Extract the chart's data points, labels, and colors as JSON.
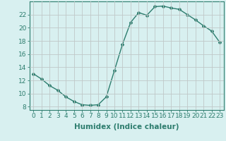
{
  "x": [
    0,
    1,
    2,
    3,
    4,
    5,
    6,
    7,
    8,
    9,
    10,
    11,
    12,
    13,
    14,
    15,
    16,
    17,
    18,
    19,
    20,
    21,
    22,
    23
  ],
  "y": [
    13.0,
    12.2,
    11.2,
    10.5,
    9.5,
    8.8,
    8.3,
    8.2,
    8.3,
    9.5,
    13.5,
    17.5,
    20.8,
    22.3,
    21.9,
    23.2,
    23.3,
    23.0,
    22.8,
    22.0,
    21.2,
    20.3,
    19.5,
    17.8
  ],
  "line_color": "#2d7d6e",
  "marker": "D",
  "marker_size": 2,
  "bg_color": "#d8f0f0",
  "grid_color": "#c0c8c8",
  "xlabel": "Humidex (Indice chaleur)",
  "xlim": [
    -0.5,
    23.5
  ],
  "ylim": [
    7.5,
    24.0
  ],
  "yticks": [
    8,
    10,
    12,
    14,
    16,
    18,
    20,
    22
  ],
  "xticks": [
    0,
    1,
    2,
    3,
    4,
    5,
    6,
    7,
    8,
    9,
    10,
    11,
    12,
    13,
    14,
    15,
    16,
    17,
    18,
    19,
    20,
    21,
    22,
    23
  ],
  "tick_fontsize": 6.5,
  "xlabel_fontsize": 7.5,
  "tick_color": "#2d7d6e",
  "spine_color": "#2d7d6e",
  "linewidth": 1.0
}
